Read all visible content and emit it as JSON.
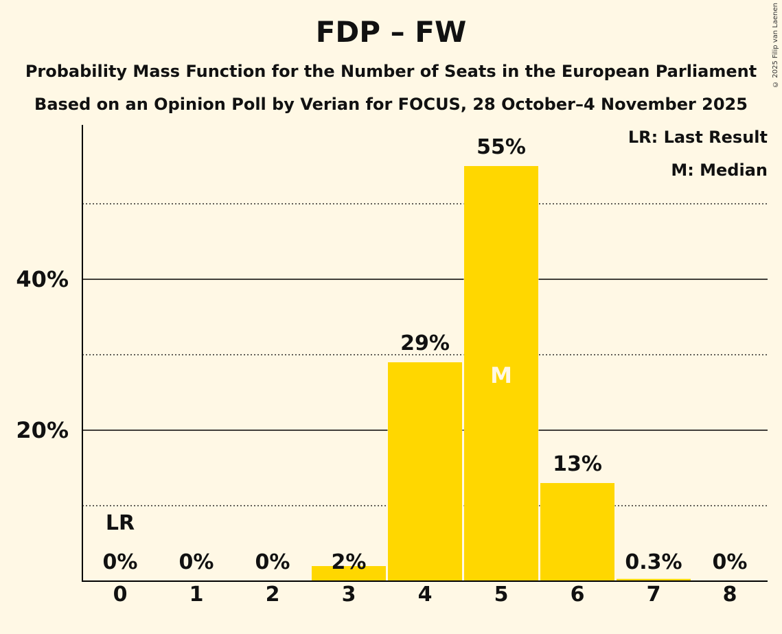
{
  "copyright": "© 2025 Filip van Laenen",
  "chart_data": {
    "type": "bar",
    "title": "FDP – FW",
    "subtitle_lines": [
      "Probability Mass Function for the Number of Seats in the European Parliament",
      "Based on an Opinion Poll by Verian for FOCUS, 28 October–4 November 2025"
    ],
    "xlabel": "",
    "ylabel": "",
    "categories": [
      "0",
      "1",
      "2",
      "3",
      "4",
      "5",
      "6",
      "7",
      "8"
    ],
    "values": [
      0,
      0,
      0,
      2,
      29,
      55,
      13,
      0.3,
      0
    ],
    "data_labels": [
      "0%",
      "0%",
      "0%",
      "2%",
      "29%",
      "55%",
      "13%",
      "0.3%",
      "0%"
    ],
    "ylim": [
      0,
      60
    ],
    "y_ticks": [
      {
        "value": 20,
        "label": "20%"
      },
      {
        "value": 40,
        "label": "40%"
      }
    ],
    "minor_gridlines": [
      10,
      30,
      50
    ],
    "last_result_index": 0,
    "last_result_marker": "LR",
    "median_index": 5,
    "median_marker": "M",
    "legend": {
      "last_result": "LR: Last Result",
      "median": "M: Median",
      "position": "top-right"
    },
    "colors": {
      "bar": "#FFD700",
      "background": "#FFF8E5",
      "median_text": "#FFF8E5"
    }
  }
}
